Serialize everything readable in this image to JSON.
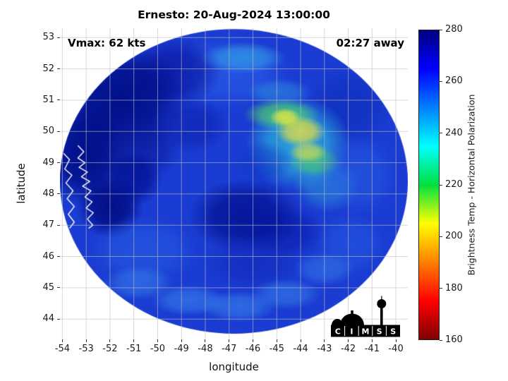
{
  "figure": {
    "title": "Ernesto: 20-Aug-2024 13:00:00",
    "vmax_label": "Vmax: 62 kts",
    "eta_label": "02:27 away",
    "xlabel": "longitude",
    "ylabel": "latitude",
    "colorbar_label": "Brightness Temp - Horizontal Polarization",
    "logo_text": "CIMSS"
  },
  "chart_data": {
    "type": "heatmap",
    "title": "Ernesto: 20-Aug-2024 13:00:00",
    "storm": {
      "name": "Ernesto",
      "timestamp": "20-Aug-2024 13:00:00",
      "vmax_kts": 62,
      "time_away": "02:27"
    },
    "xlabel": "longitude",
    "ylabel": "latitude",
    "xlim": [
      -54.1,
      -39.5
    ],
    "ylim": [
      43.35,
      53.3
    ],
    "x_ticks": [
      -54,
      -53,
      -52,
      -51,
      -50,
      -49,
      -48,
      -47,
      -46,
      -45,
      -44,
      -43,
      -42,
      -41,
      -40
    ],
    "y_ticks": [
      53,
      52,
      51,
      50,
      49,
      48,
      47,
      46,
      45,
      44
    ],
    "grid": true,
    "grid_color": "#c0c0c0",
    "colorbar": {
      "label": "Brightness Temp - Horizontal Polarization",
      "range": [
        160,
        280
      ],
      "ticks": [
        160,
        180,
        200,
        220,
        240,
        260,
        280
      ],
      "colormap": "jet_reversed",
      "stops": [
        {
          "p": 0.0,
          "color": "#7f0000"
        },
        {
          "p": 0.125,
          "color": "#ff0000"
        },
        {
          "p": 0.375,
          "color": "#ffff00"
        },
        {
          "p": 0.5,
          "color": "#00e040"
        },
        {
          "p": 0.625,
          "color": "#00ffff"
        },
        {
          "p": 0.875,
          "color": "#0000ff"
        },
        {
          "p": 1.0,
          "color": "#00007f"
        }
      ]
    },
    "swath": {
      "center_lon": -46.8,
      "center_lat": 48.4,
      "radius_lon_deg": 7.3,
      "radius_lat_deg": 4.87,
      "base_color": "#1a3cd2"
    },
    "features_key": [
      "lon",
      "lat",
      "rx_deg",
      "ry_deg",
      "color",
      "alpha"
    ],
    "features": [
      [
        -47.0,
        51.9,
        2.6,
        1.2,
        "#2a5ce8",
        0.7
      ],
      [
        -49.3,
        51.9,
        2.0,
        1.1,
        "#0a16a0",
        0.75
      ],
      [
        -51.5,
        51.0,
        2.7,
        1.8,
        "#000d85",
        0.95
      ],
      [
        -53.0,
        49.3,
        1.9,
        1.7,
        "#000d85",
        0.95
      ],
      [
        -50.7,
        49.5,
        1.7,
        1.1,
        "#0a1a9c",
        0.7
      ],
      [
        -52.0,
        47.6,
        1.4,
        1.0,
        "#000a80",
        0.9
      ],
      [
        -51.0,
        48.5,
        1.2,
        0.9,
        "#001090",
        0.8
      ],
      [
        -48.6,
        50.2,
        1.6,
        0.9,
        "#0c20aa",
        0.6
      ],
      [
        -46.4,
        52.35,
        1.8,
        0.5,
        "#38b0e8",
        0.6
      ],
      [
        -44.9,
        51.25,
        1.4,
        0.45,
        "#34a0e4",
        0.5
      ],
      [
        -42.0,
        50.8,
        1.8,
        1.3,
        "#0c2cb4",
        0.55
      ],
      [
        -44.1,
        49.6,
        2.2,
        1.5,
        "#2cb2dc",
        0.85
      ],
      [
        -45.6,
        49.0,
        1.3,
        0.7,
        "#1238c8",
        0.55
      ],
      [
        -42.9,
        48.3,
        1.4,
        0.9,
        "#30a8da",
        0.5
      ],
      [
        -44.8,
        50.55,
        1.6,
        0.5,
        "#4ed070",
        0.8
      ],
      [
        -43.4,
        49.05,
        1.1,
        0.5,
        "#54d45e",
        0.6
      ],
      [
        -44.0,
        50.0,
        1.05,
        0.5,
        "#e6e03c",
        0.85
      ],
      [
        -44.65,
        50.45,
        0.65,
        0.3,
        "#eeea3e",
        0.8
      ],
      [
        -43.7,
        49.35,
        0.8,
        0.35,
        "#d8e04e",
        0.7
      ],
      [
        -46.3,
        47.3,
        2.4,
        1.2,
        "#000e8c",
        0.8
      ],
      [
        -44.7,
        46.8,
        1.7,
        0.9,
        "#0414a0",
        0.55
      ],
      [
        -41.6,
        48.6,
        1.7,
        1.3,
        "#2a62e6",
        0.5
      ],
      [
        -41.9,
        46.4,
        1.5,
        1.0,
        "#2a62e6",
        0.45
      ],
      [
        -50.6,
        46.2,
        2.3,
        1.1,
        "#2a62e6",
        0.55
      ],
      [
        -46.0,
        45.8,
        2.1,
        0.9,
        "#0e22b0",
        0.45
      ],
      [
        -50.8,
        45.15,
        1.5,
        0.55,
        "#3f8ef0",
        0.5
      ],
      [
        -48.7,
        44.6,
        1.6,
        0.5,
        "#3f8ef0",
        0.55
      ],
      [
        -46.6,
        44.4,
        1.6,
        0.5,
        "#3f8ef0",
        0.55
      ],
      [
        -44.6,
        44.8,
        1.5,
        0.5,
        "#3f8ef0",
        0.5
      ],
      [
        -43.0,
        45.6,
        1.3,
        0.55,
        "#3f8ef0",
        0.45
      ]
    ],
    "coastlines": [
      [
        [
          -53.35,
          49.55
        ],
        [
          -53.1,
          49.35
        ],
        [
          -53.35,
          49.15
        ],
        [
          -53.05,
          49.0
        ],
        [
          -53.3,
          48.85
        ],
        [
          -52.95,
          48.7
        ],
        [
          -53.2,
          48.55
        ],
        [
          -52.85,
          48.4
        ],
        [
          -53.15,
          48.25
        ],
        [
          -52.8,
          48.1
        ],
        [
          -53.05,
          47.9
        ],
        [
          -52.75,
          47.75
        ],
        [
          -53.0,
          47.55
        ],
        [
          -52.7,
          47.4
        ],
        [
          -52.95,
          47.2
        ],
        [
          -52.72,
          47.0
        ],
        [
          -52.9,
          46.9
        ]
      ],
      [
        [
          -53.95,
          49.3
        ],
        [
          -53.7,
          49.1
        ],
        [
          -53.9,
          48.8
        ],
        [
          -53.6,
          48.6
        ],
        [
          -53.85,
          48.35
        ],
        [
          -53.55,
          48.1
        ],
        [
          -53.8,
          47.85
        ],
        [
          -53.5,
          47.6
        ],
        [
          -53.75,
          47.35
        ],
        [
          -53.5,
          47.1
        ],
        [
          -53.7,
          46.9
        ]
      ]
    ]
  }
}
